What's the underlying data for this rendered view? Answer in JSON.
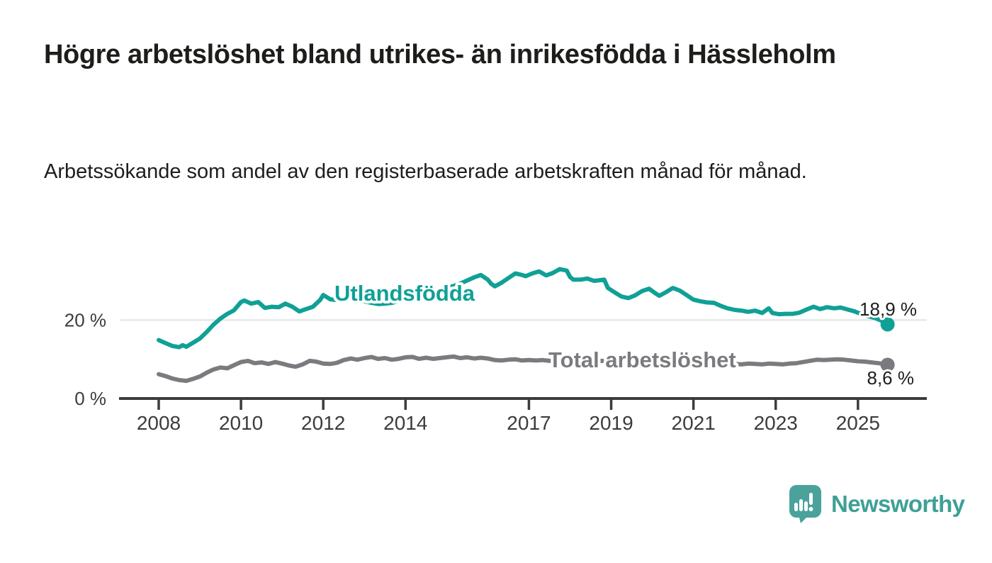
{
  "title": "Högre arbetslöshet bland utrikes- än inrikesfödda i Hässleholm",
  "subtitle": "Arbetssökande som andel av den registerbaserade arbetskraften månad för månad.",
  "branding": {
    "logo_text": "Newsworthy",
    "logo_icon": "bar-chart-speech-bubble-icon",
    "brand_color": "#47a29a"
  },
  "chart_data": {
    "type": "line",
    "title": "",
    "xlabel": "",
    "ylabel": "",
    "grid": "single horizontal gridline at 20%",
    "legend_position": "inline labels on lines",
    "x_axis": {
      "ticks": [
        2008,
        2010,
        2012,
        2014,
        2017,
        2019,
        2021,
        2023,
        2025
      ],
      "tick_labels": [
        "2008",
        "2010",
        "2012",
        "2014",
        "2017",
        "2019",
        "2021",
        "2023",
        "2025"
      ],
      "range": [
        2007.0,
        2026.7
      ]
    },
    "y_axis": {
      "ticks": [
        0,
        20
      ],
      "tick_labels": [
        "0 %",
        "20 %"
      ],
      "gridlines": [
        20
      ],
      "range": [
        0,
        36
      ]
    },
    "series": [
      {
        "name": "Utlandsfödda",
        "color": "#10a096",
        "end_value": 18.9,
        "end_label": "18,9 %",
        "points": [
          [
            2008.0,
            14.9
          ],
          [
            2008.17,
            14.1
          ],
          [
            2008.33,
            13.4
          ],
          [
            2008.5,
            13.1
          ],
          [
            2008.58,
            13.6
          ],
          [
            2008.67,
            13.2
          ],
          [
            2008.83,
            14.2
          ],
          [
            2009.0,
            15.3
          ],
          [
            2009.17,
            17.0
          ],
          [
            2009.33,
            18.8
          ],
          [
            2009.5,
            20.4
          ],
          [
            2009.67,
            21.6
          ],
          [
            2009.83,
            22.5
          ],
          [
            2010.0,
            24.6
          ],
          [
            2010.08,
            25.0
          ],
          [
            2010.25,
            24.2
          ],
          [
            2010.42,
            24.6
          ],
          [
            2010.58,
            23.1
          ],
          [
            2010.75,
            23.4
          ],
          [
            2010.92,
            23.3
          ],
          [
            2011.08,
            24.2
          ],
          [
            2011.25,
            23.4
          ],
          [
            2011.42,
            22.2
          ],
          [
            2011.58,
            22.8
          ],
          [
            2011.75,
            23.4
          ],
          [
            2011.92,
            25.1
          ],
          [
            2012.0,
            26.4
          ],
          [
            2012.17,
            25.3
          ],
          [
            2012.33,
            25.1
          ],
          [
            2012.5,
            25.7
          ],
          [
            2012.67,
            25.9
          ],
          [
            2012.83,
            25.3
          ],
          [
            2013.0,
            24.8
          ],
          [
            2013.17,
            24.4
          ],
          [
            2013.33,
            24.1
          ],
          [
            2013.5,
            24.2
          ],
          [
            2013.67,
            24.4
          ],
          [
            2013.83,
            24.9
          ],
          [
            2014.0,
            25.4
          ],
          [
            2014.17,
            25.9
          ],
          [
            2014.33,
            26.3
          ],
          [
            2014.5,
            26.7
          ],
          [
            2014.67,
            27.2
          ],
          [
            2014.83,
            27.7
          ],
          [
            2015.0,
            28.2
          ],
          [
            2015.17,
            28.7
          ],
          [
            2015.33,
            29.3
          ],
          [
            2015.5,
            30.1
          ],
          [
            2015.67,
            30.9
          ],
          [
            2015.83,
            31.5
          ],
          [
            2016.0,
            30.3
          ],
          [
            2016.08,
            29.3
          ],
          [
            2016.17,
            28.6
          ],
          [
            2016.33,
            29.5
          ],
          [
            2016.5,
            30.7
          ],
          [
            2016.67,
            31.9
          ],
          [
            2016.83,
            31.5
          ],
          [
            2016.92,
            31.2
          ],
          [
            2017.08,
            31.9
          ],
          [
            2017.25,
            32.4
          ],
          [
            2017.42,
            31.4
          ],
          [
            2017.58,
            32.0
          ],
          [
            2017.75,
            33.0
          ],
          [
            2017.92,
            32.6
          ],
          [
            2018.0,
            31.0
          ],
          [
            2018.08,
            30.3
          ],
          [
            2018.25,
            30.3
          ],
          [
            2018.42,
            30.6
          ],
          [
            2018.58,
            30.0
          ],
          [
            2018.75,
            30.2
          ],
          [
            2018.83,
            30.3
          ],
          [
            2018.92,
            28.2
          ],
          [
            2019.08,
            27.1
          ],
          [
            2019.25,
            26.0
          ],
          [
            2019.42,
            25.6
          ],
          [
            2019.58,
            26.3
          ],
          [
            2019.75,
            27.4
          ],
          [
            2019.92,
            28.0
          ],
          [
            2020.08,
            26.8
          ],
          [
            2020.17,
            26.2
          ],
          [
            2020.33,
            27.1
          ],
          [
            2020.5,
            28.2
          ],
          [
            2020.67,
            27.5
          ],
          [
            2020.83,
            26.4
          ],
          [
            2021.0,
            25.2
          ],
          [
            2021.17,
            24.8
          ],
          [
            2021.33,
            24.5
          ],
          [
            2021.5,
            24.4
          ],
          [
            2021.67,
            23.6
          ],
          [
            2021.83,
            23.0
          ],
          [
            2022.0,
            22.6
          ],
          [
            2022.17,
            22.4
          ],
          [
            2022.33,
            22.1
          ],
          [
            2022.5,
            22.4
          ],
          [
            2022.67,
            21.8
          ],
          [
            2022.83,
            23.0
          ],
          [
            2022.92,
            21.8
          ],
          [
            2023.08,
            21.5
          ],
          [
            2023.25,
            21.6
          ],
          [
            2023.42,
            21.6
          ],
          [
            2023.58,
            21.9
          ],
          [
            2023.75,
            22.7
          ],
          [
            2023.92,
            23.4
          ],
          [
            2024.08,
            22.8
          ],
          [
            2024.25,
            23.3
          ],
          [
            2024.42,
            23.0
          ],
          [
            2024.58,
            23.2
          ],
          [
            2024.75,
            22.7
          ],
          [
            2024.92,
            22.2
          ],
          [
            2025.08,
            21.5
          ],
          [
            2025.25,
            21.0
          ],
          [
            2025.42,
            20.5
          ],
          [
            2025.58,
            19.8
          ],
          [
            2025.72,
            18.9
          ]
        ]
      },
      {
        "name": "Total arbetslöshet",
        "color": "#7b7b7f",
        "end_value": 8.6,
        "end_label": "8,6 %",
        "points": [
          [
            2008.0,
            6.2
          ],
          [
            2008.17,
            5.7
          ],
          [
            2008.33,
            5.1
          ],
          [
            2008.5,
            4.7
          ],
          [
            2008.67,
            4.5
          ],
          [
            2008.83,
            5.0
          ],
          [
            2009.0,
            5.6
          ],
          [
            2009.17,
            6.6
          ],
          [
            2009.33,
            7.4
          ],
          [
            2009.5,
            7.9
          ],
          [
            2009.67,
            7.7
          ],
          [
            2009.83,
            8.5
          ],
          [
            2010.0,
            9.3
          ],
          [
            2010.17,
            9.6
          ],
          [
            2010.33,
            9.0
          ],
          [
            2010.5,
            9.2
          ],
          [
            2010.67,
            8.8
          ],
          [
            2010.83,
            9.3
          ],
          [
            2011.0,
            8.9
          ],
          [
            2011.17,
            8.4
          ],
          [
            2011.33,
            8.1
          ],
          [
            2011.5,
            8.7
          ],
          [
            2011.67,
            9.6
          ],
          [
            2011.83,
            9.4
          ],
          [
            2012.0,
            8.9
          ],
          [
            2012.17,
            8.8
          ],
          [
            2012.33,
            9.1
          ],
          [
            2012.5,
            9.8
          ],
          [
            2012.67,
            10.2
          ],
          [
            2012.83,
            9.9
          ],
          [
            2013.0,
            10.3
          ],
          [
            2013.17,
            10.6
          ],
          [
            2013.33,
            10.1
          ],
          [
            2013.5,
            10.3
          ],
          [
            2013.67,
            9.9
          ],
          [
            2013.83,
            10.1
          ],
          [
            2014.0,
            10.5
          ],
          [
            2014.17,
            10.6
          ],
          [
            2014.33,
            10.1
          ],
          [
            2014.5,
            10.4
          ],
          [
            2014.67,
            10.1
          ],
          [
            2014.83,
            10.3
          ],
          [
            2015.0,
            10.5
          ],
          [
            2015.17,
            10.7
          ],
          [
            2015.33,
            10.3
          ],
          [
            2015.5,
            10.5
          ],
          [
            2015.67,
            10.2
          ],
          [
            2015.83,
            10.4
          ],
          [
            2016.0,
            10.2
          ],
          [
            2016.17,
            9.8
          ],
          [
            2016.33,
            9.7
          ],
          [
            2016.5,
            9.9
          ],
          [
            2016.67,
            10.0
          ],
          [
            2016.83,
            9.7
          ],
          [
            2017.0,
            9.8
          ],
          [
            2017.17,
            9.7
          ],
          [
            2017.33,
            9.8
          ],
          [
            2017.5,
            9.6
          ],
          [
            2017.75,
            9.7
          ],
          [
            2018.0,
            9.6
          ],
          [
            2018.25,
            9.5
          ],
          [
            2018.5,
            9.4
          ],
          [
            2018.75,
            9.6
          ],
          [
            2019.0,
            9.5
          ],
          [
            2019.25,
            9.3
          ],
          [
            2019.5,
            9.4
          ],
          [
            2019.75,
            9.5
          ],
          [
            2020.0,
            9.7
          ],
          [
            2020.25,
            9.9
          ],
          [
            2020.5,
            9.8
          ],
          [
            2020.75,
            9.6
          ],
          [
            2021.0,
            9.4
          ],
          [
            2021.25,
            9.2
          ],
          [
            2021.5,
            9.1
          ],
          [
            2021.75,
            8.9
          ],
          [
            2022.0,
            8.8
          ],
          [
            2022.17,
            8.7
          ],
          [
            2022.33,
            8.9
          ],
          [
            2022.5,
            8.8
          ],
          [
            2022.67,
            8.7
          ],
          [
            2022.83,
            8.9
          ],
          [
            2023.0,
            8.8
          ],
          [
            2023.17,
            8.7
          ],
          [
            2023.33,
            8.9
          ],
          [
            2023.5,
            9.0
          ],
          [
            2023.67,
            9.3
          ],
          [
            2023.83,
            9.6
          ],
          [
            2024.0,
            9.9
          ],
          [
            2024.17,
            9.8
          ],
          [
            2024.33,
            9.9
          ],
          [
            2024.5,
            10.0
          ],
          [
            2024.67,
            9.9
          ],
          [
            2024.83,
            9.7
          ],
          [
            2025.0,
            9.5
          ],
          [
            2025.17,
            9.4
          ],
          [
            2025.33,
            9.2
          ],
          [
            2025.5,
            9.0
          ],
          [
            2025.72,
            8.6
          ]
        ]
      }
    ]
  }
}
